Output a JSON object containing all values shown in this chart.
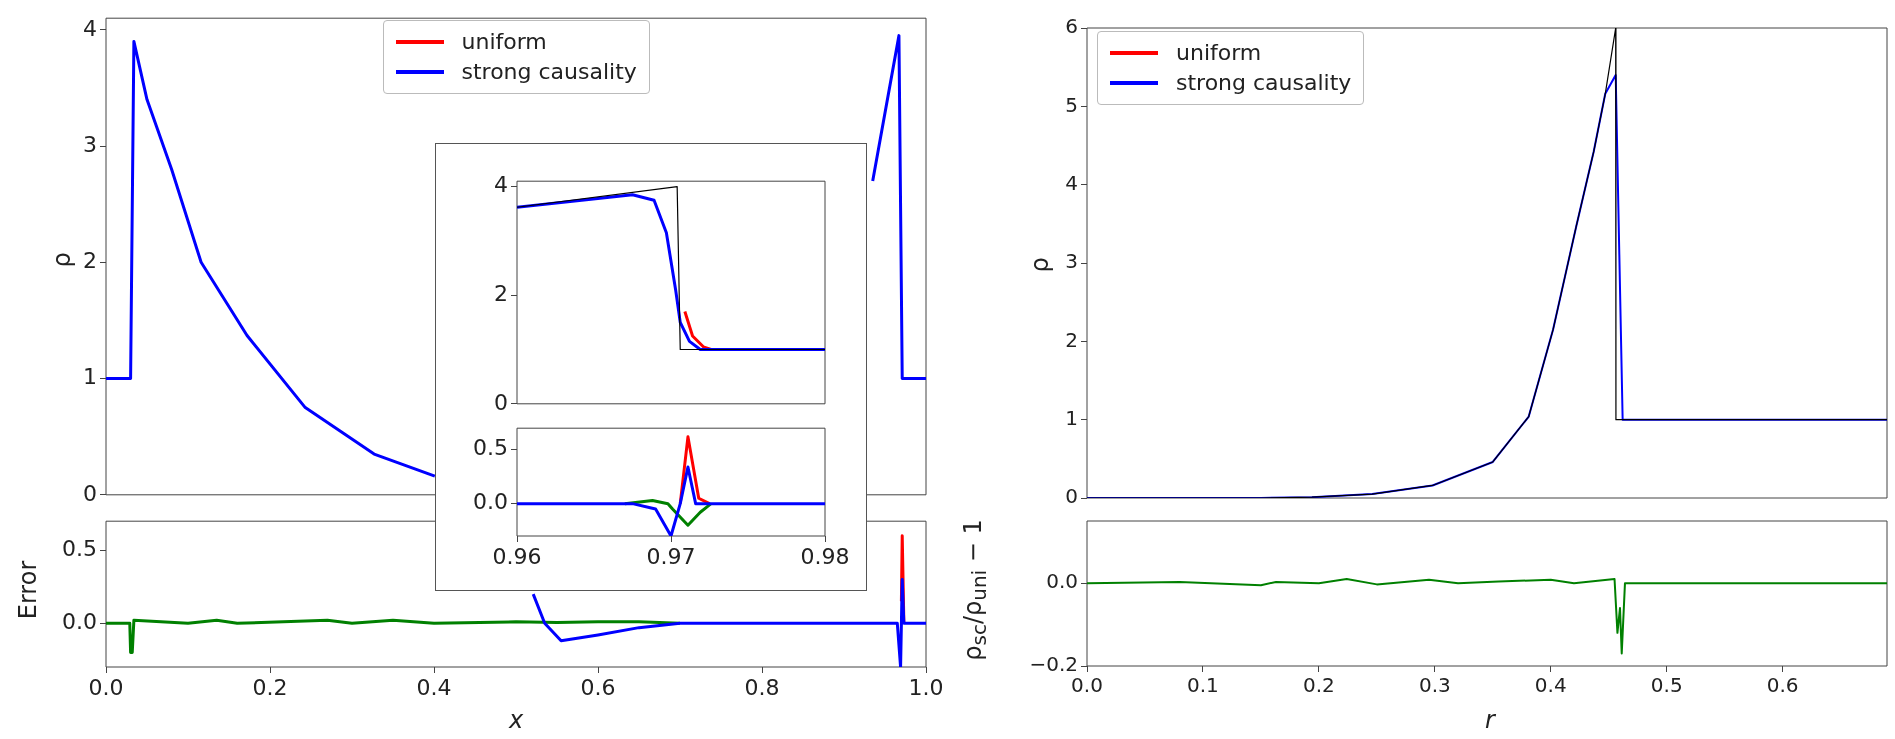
{
  "chart_data": [
    {
      "type": "line",
      "ylabel": "ρ",
      "xlim": [
        0,
        1
      ],
      "ylim": [
        0,
        4.1
      ],
      "xticks": [
        0,
        0.2,
        0.4,
        0.6,
        0.8,
        1
      ],
      "yticks": [
        0,
        1,
        2,
        3,
        4
      ],
      "tick_labels": "y",
      "legend": "top",
      "series": [
        {
          "name": "uniform",
          "color": "#ff0000"
        },
        {
          "name": "strong causality",
          "color": "#0000ff",
          "x": [
            0,
            0.03,
            0.034,
            0.05,
            0.08,
            0.116,
            0.172,
            0.243,
            0.327,
            0.401,
            0.6,
            0.935,
            0.967,
            0.971,
            1
          ],
          "values": [
            1,
            1,
            3.9,
            3.4,
            2.8,
            2.0,
            1.37,
            0.75,
            0.35,
            0.16,
            null,
            2.7,
            3.95,
            1,
            1
          ]
        }
      ]
    },
    {
      "type": "line",
      "xlabel": "x",
      "ylabel": "Error",
      "xlim": [
        0,
        1
      ],
      "ylim": [
        -0.3,
        0.7
      ],
      "xticks": [
        {
          "value": 0,
          "label": "0.0"
        },
        {
          "value": 0.2,
          "label": "0.2"
        },
        {
          "value": 0.4,
          "label": "0.4"
        },
        {
          "value": 0.6,
          "label": "0.6"
        },
        {
          "value": 0.8,
          "label": "0.8"
        },
        {
          "value": 1,
          "label": "1.0"
        }
      ],
      "yticks": [
        {
          "value": 0,
          "label": "0.0"
        },
        {
          "value": 0.5,
          "label": "0.5"
        }
      ],
      "series": [
        {
          "color": "#008000",
          "x": [
            0,
            0.029,
            0.03,
            0.032,
            0.034,
            0.1,
            0.135,
            0.16,
            0.27,
            0.3,
            0.35,
            0.4,
            0.5,
            0.55,
            0.6,
            0.65,
            0.7
          ],
          "values": [
            0,
            0,
            -0.2,
            -0.2,
            0.02,
            0,
            0.02,
            0,
            0.02,
            0,
            0.02,
            0,
            0.01,
            0.005,
            0.01,
            0.01,
            0
          ]
        },
        {
          "color": "#ff0000",
          "x": [
            0.97,
            0.971,
            0.973
          ],
          "values": [
            0.15,
            0.6,
            0
          ]
        },
        {
          "color": "#0000ff",
          "x": [
            0.521,
            0.535,
            0.555,
            0.6,
            0.65,
            0.7,
            0.8,
            0.965,
            0.969,
            0.971,
            0.973,
            1
          ],
          "values": [
            0.2,
            0,
            -0.12,
            -0.08,
            -0.03,
            0,
            0,
            0,
            -0.3,
            0.3,
            0,
            0
          ]
        }
      ]
    },
    {
      "type": "line",
      "xlim": [
        0.96,
        0.98
      ],
      "ylim": [
        0,
        4.1
      ],
      "xticks": [
        0.96,
        0.97,
        0.98
      ],
      "yticks": [
        0,
        2,
        4
      ],
      "tick_labels": "y",
      "series": [
        {
          "color": "#ff0000",
          "x": [
            0.9709,
            0.9714,
            0.9721,
            0.9726
          ],
          "values": [
            1.7,
            1.25,
            1.05,
            1
          ]
        },
        {
          "color": "#0000ff",
          "x": [
            0.96,
            0.9675,
            0.9689,
            0.9697,
            0.9703,
            0.9706,
            0.9712,
            0.9719,
            0.98
          ],
          "values": [
            3.62,
            3.85,
            3.75,
            3.15,
            2.1,
            1.5,
            1.15,
            1,
            1
          ]
        },
        {
          "color": "#000000",
          "x": [
            0.96,
            0.9704,
            0.9706,
            0.98
          ],
          "values": [
            3.62,
            4,
            1,
            1
          ]
        }
      ]
    },
    {
      "type": "line",
      "xlim": [
        0.96,
        0.98
      ],
      "ylim": [
        -0.3,
        0.7
      ],
      "xticks": [
        0.96,
        0.97,
        0.98
      ],
      "yticks": [
        {
          "value": 0,
          "label": "0.0"
        },
        {
          "value": 0.5,
          "label": "0.5"
        }
      ],
      "series": [
        {
          "color": "#008000",
          "x": [
            0.967,
            0.9688,
            0.9698,
            0.9701,
            0.9711,
            0.9719,
            0.9726
          ],
          "values": [
            0,
            0.03,
            0,
            -0.05,
            -0.2,
            -0.08,
            0
          ]
        },
        {
          "color": "#ff0000",
          "x": [
            0.9706,
            0.9711,
            0.9718,
            0.9725
          ],
          "values": [
            0,
            0.62,
            0.05,
            0
          ]
        },
        {
          "color": "#0000ff",
          "x": [
            0.96,
            0.9675,
            0.969,
            0.97,
            0.9706,
            0.9711,
            0.9716,
            0.9726,
            0.98
          ],
          "values": [
            0,
            0,
            -0.05,
            -0.3,
            0,
            0.34,
            0,
            0,
            0
          ]
        }
      ]
    },
    {
      "type": "line",
      "ylabel": "ρ",
      "xlim": [
        0,
        0.69
      ],
      "ylim": [
        0,
        6
      ],
      "xticks": [
        0,
        0.1,
        0.2,
        0.3,
        0.4,
        0.5,
        0.6
      ],
      "yticks": [
        0,
        1,
        2,
        3,
        4,
        5,
        6
      ],
      "tick_labels": "y",
      "legend": "top left",
      "series": [
        {
          "name": "uniform",
          "color": "#ff0000"
        },
        {
          "name": "strong causality",
          "color": "#0000ff",
          "x": [
            0,
            0.15,
            0.194,
            0.246,
            0.298,
            0.35,
            0.381,
            0.402,
            0.422,
            0.437,
            0.447,
            0.456,
            0.462,
            0.69
          ],
          "values": [
            0,
            0,
            0.01,
            0.05,
            0.16,
            0.46,
            1.04,
            2.15,
            3.47,
            4.42,
            5.16,
            5.4,
            1,
            1
          ]
        },
        {
          "color": "#000000",
          "x": [
            0,
            0.15,
            0.194,
            0.246,
            0.298,
            0.35,
            0.381,
            0.402,
            0.422,
            0.437,
            0.447,
            0.456,
            0.4562,
            0.69
          ],
          "values": [
            0,
            0,
            0.01,
            0.05,
            0.16,
            0.46,
            1.04,
            2.15,
            3.47,
            4.42,
            5.16,
            6,
            1,
            1
          ]
        }
      ]
    },
    {
      "type": "line",
      "xlabel": "r",
      "ylabel": "ρ$_{sc}$/ρ$_{uni}$ − 1",
      "xlim": [
        0,
        0.69
      ],
      "ylim": [
        -0.2,
        0.15
      ],
      "xticks": [
        {
          "value": 0,
          "label": "0.0"
        },
        {
          "value": 0.1,
          "label": "0.1"
        },
        {
          "value": 0.2,
          "label": "0.2"
        },
        {
          "value": 0.3,
          "label": "0.3"
        },
        {
          "value": 0.4,
          "label": "0.4"
        },
        {
          "value": 0.5,
          "label": "0.5"
        },
        {
          "value": 0.6,
          "label": "0.6"
        }
      ],
      "yticks": [
        {
          "value": -0.2,
          "label": "−0.2"
        },
        {
          "value": 0,
          "label": "0.0"
        }
      ],
      "series": [
        {
          "color": "#008000",
          "x": [
            0,
            0.08,
            0.15,
            0.163,
            0.2,
            0.224,
            0.25,
            0.295,
            0.32,
            0.355,
            0.4,
            0.42,
            0.455,
            0.4575,
            0.4597,
            0.4612,
            0.464,
            0.69
          ],
          "values": [
            0,
            0.003,
            -0.005,
            0.003,
            0,
            0.01,
            -0.003,
            0.008,
            0,
            0.004,
            0.008,
            0,
            0.01,
            -0.12,
            -0.06,
            -0.17,
            0,
            0
          ]
        }
      ]
    }
  ]
}
